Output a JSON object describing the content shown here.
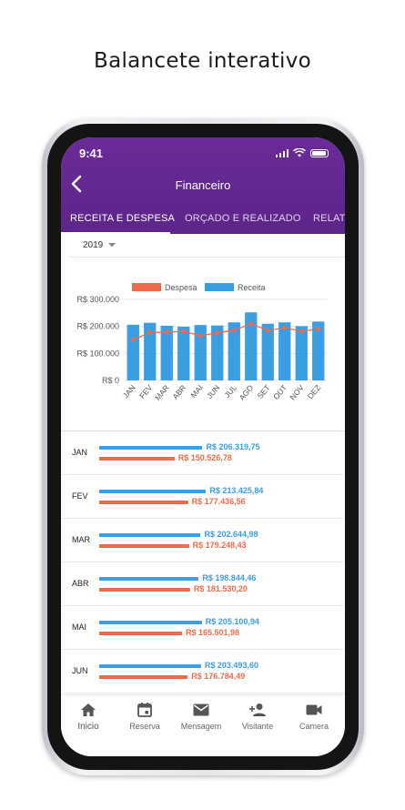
{
  "headline": "Balancete interativo",
  "status": {
    "time": "9:41"
  },
  "header": {
    "title": "Financeiro"
  },
  "tabs": [
    {
      "label": "RECEITA E DESPESA",
      "active": true
    },
    {
      "label": "ORÇADO E REALIZADO",
      "active": false
    },
    {
      "label": "RELATO",
      "active": false
    }
  ],
  "year_select": {
    "value": "2019"
  },
  "colors": {
    "purple": "#5d2589",
    "receita": "#3a9ee2",
    "despesa": "#ef6a4c"
  },
  "chart_data": {
    "type": "bar",
    "legend": [
      "Despesa",
      "Receita"
    ],
    "categories": [
      "JAN",
      "FEV",
      "MAR",
      "ABR",
      "MAI",
      "JUN",
      "JUL",
      "AGO",
      "SET",
      "OUT",
      "NOV",
      "DEZ"
    ],
    "series": [
      {
        "name": "Receita",
        "type": "bar",
        "values": [
          206320,
          213426,
          202645,
          198844,
          205101,
          203494,
          215000,
          252000,
          210000,
          215000,
          201000,
          218000
        ]
      },
      {
        "name": "Despesa",
        "type": "line",
        "values": [
          150527,
          177437,
          179248,
          181530,
          165502,
          176784,
          185000,
          210000,
          185000,
          195000,
          182000,
          190000
        ]
      }
    ],
    "ylim": [
      0,
      300000
    ],
    "yticks": [
      "R$ 0",
      "R$ 100.000",
      "R$ 200.000",
      "R$ 300.000"
    ],
    "legend_position": "top"
  },
  "monthly": [
    {
      "month": "JAN",
      "receita": "R$ 206.319,75",
      "despesa": "R$ 150.526,78",
      "receita_value": 206320,
      "despesa_value": 150527
    },
    {
      "month": "FEV",
      "receita": "R$ 213.425,84",
      "despesa": "R$ 177.436,56",
      "receita_value": 213426,
      "despesa_value": 177437
    },
    {
      "month": "MAR",
      "receita": "R$ 202.644,98",
      "despesa": "R$ 179.248,43",
      "receita_value": 202645,
      "despesa_value": 179248
    },
    {
      "month": "ABR",
      "receita": "R$ 198.844,46",
      "despesa": "R$ 181.530,20",
      "receita_value": 198844,
      "despesa_value": 181530
    },
    {
      "month": "MAI",
      "receita": "R$ 205.100,94",
      "despesa": "R$ 165.501,98",
      "receita_value": 205101,
      "despesa_value": 165502
    },
    {
      "month": "JUN",
      "receita": "R$ 203.493,60",
      "despesa": "R$ 176.784,49",
      "receita_value": 203494,
      "despesa_value": 176784
    }
  ],
  "bottom_nav": [
    {
      "label": "Inicio",
      "icon": "home-icon",
      "active": true
    },
    {
      "label": "Reserva",
      "icon": "calendar-icon",
      "active": false
    },
    {
      "label": "Mensagem",
      "icon": "mail-icon",
      "active": false
    },
    {
      "label": "Visitante",
      "icon": "person-add-icon",
      "active": false
    },
    {
      "label": "Camera",
      "icon": "videocam-icon",
      "active": false
    }
  ]
}
